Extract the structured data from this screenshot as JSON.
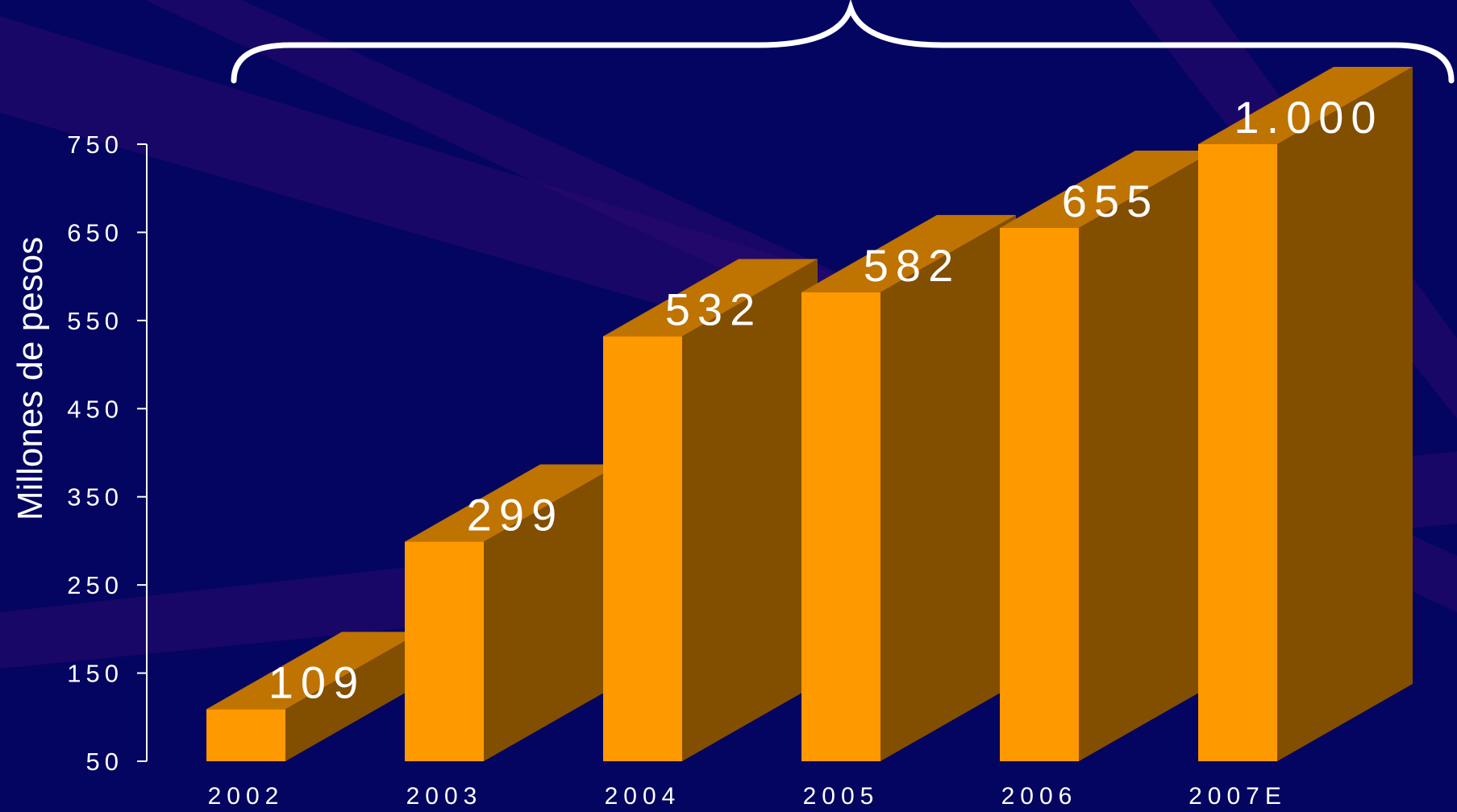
{
  "colors": {
    "background": "#040560",
    "bar_front": "#FF9900",
    "bar_top": "#BF7300",
    "bar_side": "#824E00",
    "axis": "#FFFFFF",
    "text": "#FFFFFF",
    "beam": "#2A0A6E"
  },
  "chart_data": {
    "type": "bar",
    "style": "3d",
    "categories": [
      "2002",
      "2003",
      "2004",
      "2005",
      "2006",
      "2007E"
    ],
    "values": [
      109,
      299,
      532,
      582,
      655,
      1000
    ],
    "data_labels": [
      "109",
      "299",
      "532",
      "582",
      "655",
      "1.000"
    ],
    "ylabel": "Millones de pesos",
    "yticks": [
      "50",
      "150",
      "250",
      "350",
      "450",
      "550",
      "650",
      "750"
    ],
    "ylim": [
      50,
      750
    ],
    "clipped_at_axis_max": true,
    "grid": false,
    "legend": "none",
    "annotation": "curly brace above the bars"
  }
}
